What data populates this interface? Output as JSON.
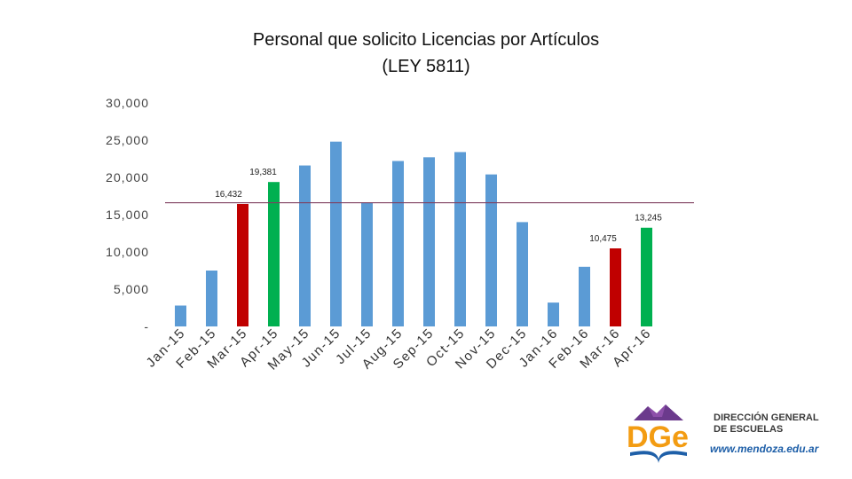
{
  "title": {
    "line1": "Personal que solicito Licencias por Artículos",
    "line2": "(LEY 5811)"
  },
  "chart_data": {
    "type": "bar",
    "title": "Personal que solicito Licencias por Artículos (LEY 5811)",
    "categories": [
      "Jan-15",
      "Feb-15",
      "Mar-15",
      "Apr-15",
      "May-15",
      "Jun-15",
      "Jul-15",
      "Aug-15",
      "Sep-15",
      "Oct-15",
      "Nov-15",
      "Dec-15",
      "Jan-16",
      "Feb-16",
      "Mar-16",
      "Apr-16"
    ],
    "values": [
      2800,
      7500,
      16432,
      19381,
      21600,
      24800,
      16600,
      22200,
      22700,
      23400,
      20400,
      14000,
      3200,
      8000,
      10475,
      13245
    ],
    "bar_colors": [
      "#5b9bd5",
      "#5b9bd5",
      "#c00000",
      "#00b050",
      "#5b9bd5",
      "#5b9bd5",
      "#5b9bd5",
      "#5b9bd5",
      "#5b9bd5",
      "#5b9bd5",
      "#5b9bd5",
      "#5b9bd5",
      "#5b9bd5",
      "#5b9bd5",
      "#c00000",
      "#00b050"
    ],
    "data_labels": [
      {
        "index": 2,
        "text": "16,432"
      },
      {
        "index": 3,
        "text": "19,381"
      },
      {
        "index": 14,
        "text": "10,475"
      },
      {
        "index": 15,
        "text": "13,245"
      }
    ],
    "ylim": [
      0,
      30000
    ],
    "yticks": [
      0,
      5000,
      10000,
      15000,
      20000,
      25000,
      30000
    ],
    "ytick_labels": [
      "-",
      "5,000",
      "10,000",
      "15,000",
      "20,000",
      "25,000",
      "30,000"
    ],
    "reference_line": {
      "value": 16600,
      "color": "#7f3f5f"
    },
    "grid": false,
    "legend": "none"
  },
  "logo": {
    "letters": "DGe",
    "name_line1": "DIRECCIÓN GENERAL",
    "name_line2": "DE ESCUELAS",
    "url": "www.mendoza.edu.ar"
  },
  "colors": {
    "blue": "#5b9bd5",
    "red": "#c00000",
    "green": "#00b050",
    "logo_purple": "#6b3a8c",
    "logo_orange": "#f39c12",
    "logo_blue": "#1e5fa8"
  }
}
